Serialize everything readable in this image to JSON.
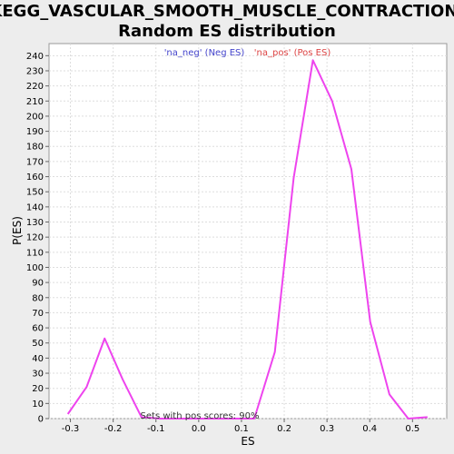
{
  "chart_data": {
    "type": "line",
    "title_lines": [
      "KEGG_VASCULAR_SMOOTH_MUSCLE_CONTRACTION:",
      "Random ES distribution"
    ],
    "xlabel": "ES",
    "ylabel": "P(ES)",
    "xlim": [
      -0.35,
      0.58
    ],
    "ylim": [
      0,
      248
    ],
    "xticks": [
      -0.3,
      -0.2,
      -0.1,
      0.0,
      0.1,
      0.2,
      0.3,
      0.4,
      0.5
    ],
    "xtick_labels": [
      "-0.3",
      "-0.2",
      "-0.1",
      "0.0",
      "0.1",
      "0.2",
      "0.3",
      "0.4",
      "0.5"
    ],
    "yticks": [
      0,
      10,
      20,
      30,
      40,
      50,
      60,
      70,
      80,
      90,
      100,
      110,
      120,
      130,
      140,
      150,
      160,
      170,
      180,
      190,
      200,
      210,
      220,
      230,
      240
    ],
    "ytick_labels": [
      "0",
      "10",
      "20",
      "30",
      "40",
      "50",
      "60",
      "70",
      "80",
      "90",
      "100",
      "110",
      "120",
      "130",
      "140",
      "150",
      "160",
      "170",
      "180",
      "190",
      "200",
      "210",
      "220",
      "230",
      "240"
    ],
    "grid": true,
    "legend": [
      {
        "label": "'na_neg' (Neg ES)",
        "color": "#4444cc"
      },
      {
        "label": "'na_pos' (Pos ES)",
        "color": "#dd4444"
      }
    ],
    "annotation": "Sets with pos scores: 90%",
    "series": [
      {
        "color": "#ee44ee",
        "x": [
          -0.306,
          -0.262,
          -0.22,
          -0.178,
          -0.134,
          -0.09,
          -0.046,
          -0.002,
          0.042,
          0.086,
          0.13,
          0.178,
          0.222,
          0.267,
          0.312,
          0.357,
          0.401,
          0.446,
          0.49,
          0.535
        ],
        "y": [
          3,
          21,
          53,
          26,
          1,
          0,
          0,
          0,
          0,
          0,
          0,
          44,
          159,
          237,
          210,
          165,
          64,
          16,
          0,
          1
        ]
      }
    ]
  }
}
